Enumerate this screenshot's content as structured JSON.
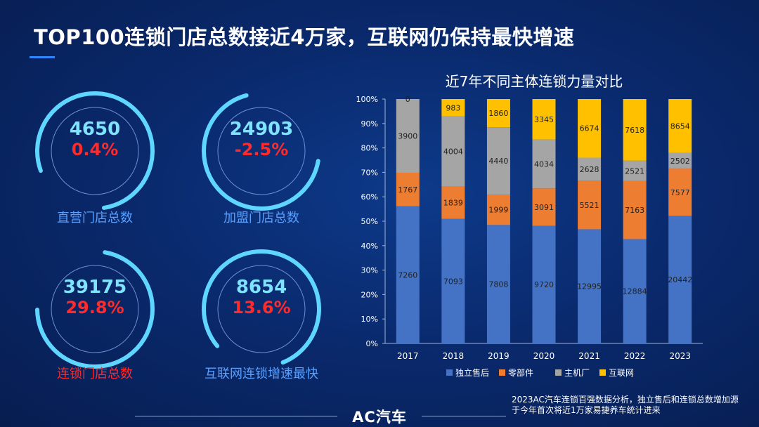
{
  "title": "TOP100连锁门店总数接近4万家，互联网仍保持最快增速",
  "kpis": [
    {
      "value": "4650",
      "change": "0.4%",
      "label": "直营门店总数",
      "label_color": "#5aa0ff",
      "ring_fraction": 0.78
    },
    {
      "value": "24903",
      "change": "-2.5%",
      "label": "加盟门店总数",
      "label_color": "#5aa0ff",
      "ring_fraction": 0.68
    },
    {
      "value": "39175",
      "change": "29.8%",
      "label": "连锁门店总数",
      "label_color": "#ff2a2a",
      "ring_fraction": 0.72
    },
    {
      "value": "8654",
      "change": "13.6%",
      "label": "互联网连锁增速最快",
      "label_color": "#5aa0ff",
      "ring_fraction": 0.8
    }
  ],
  "colors": {
    "ring": "#5fd6ff",
    "ring_track": "#6d8fd0",
    "value": "#7fe3ff",
    "change": "#ff2a2a"
  },
  "chart_data": {
    "type": "bar",
    "stacked": true,
    "normalized": true,
    "title": "近7年不同主体连锁力量对比",
    "categories": [
      "2017",
      "2018",
      "2019",
      "2020",
      "2021",
      "2022",
      "2023"
    ],
    "series": [
      {
        "name": "独立售后",
        "color": "#4472c4",
        "values": [
          7260,
          7093,
          7808,
          9720,
          12995,
          12884,
          20442
        ]
      },
      {
        "name": "零部件",
        "color": "#ed7d31",
        "values": [
          1767,
          1839,
          1999,
          3091,
          5521,
          7163,
          7577
        ]
      },
      {
        "name": "主机厂",
        "color": "#a5a5a5",
        "values": [
          3900,
          4004,
          4440,
          4034,
          2628,
          2521,
          2502
        ]
      },
      {
        "name": "互联网",
        "color": "#ffc000",
        "values": [
          0,
          983,
          1860,
          3345,
          6674,
          7618,
          8654
        ]
      }
    ],
    "yticks": [
      "0%",
      "10%",
      "20%",
      "30%",
      "40%",
      "50%",
      "60%",
      "70%",
      "80%",
      "90%",
      "100%"
    ],
    "ylim": [
      0,
      100
    ],
    "legend": "bottom"
  },
  "footer": {
    "note": "2023AC汽车连锁百强数据分析，独立售后和连锁总数增加源于今年首次将近1万家易捷养车统计进来",
    "brand": "AC汽车"
  }
}
